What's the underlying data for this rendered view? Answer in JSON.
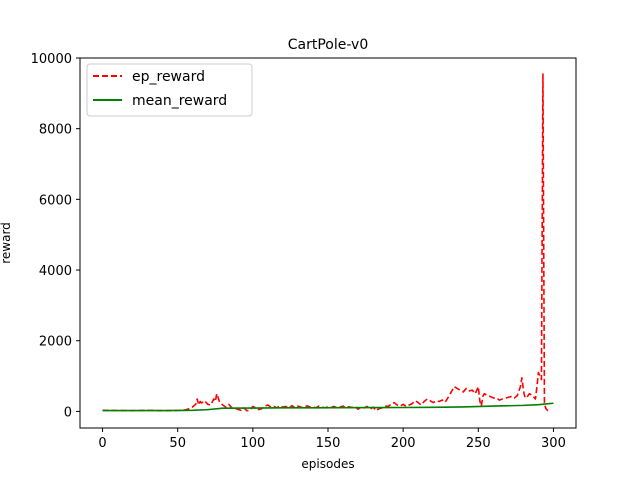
{
  "chart_data": {
    "type": "line",
    "title": "CartPole-v0",
    "xlabel": "episodes",
    "ylabel": "reward",
    "xlim": [
      -15,
      315
    ],
    "ylim": [
      -470,
      10000
    ],
    "xticks": [
      0,
      50,
      100,
      150,
      200,
      250,
      300
    ],
    "yticks": [
      0,
      2000,
      4000,
      6000,
      8000,
      10000
    ],
    "legend_position": "top-left",
    "series": [
      {
        "name": "ep_reward",
        "color": "#ff0000",
        "style": "dashed",
        "x": [
          0,
          10,
          20,
          30,
          40,
          50,
          55,
          58,
          60,
          62,
          63,
          64,
          65,
          66,
          68,
          70,
          72,
          74,
          75,
          76,
          78,
          80,
          82,
          84,
          86,
          88,
          90,
          92,
          94,
          96,
          98,
          100,
          102,
          104,
          106,
          108,
          110,
          112,
          114,
          116,
          118,
          120,
          122,
          124,
          126,
          128,
          130,
          132,
          134,
          136,
          138,
          140,
          142,
          144,
          146,
          148,
          150,
          152,
          154,
          156,
          158,
          160,
          162,
          164,
          166,
          168,
          170,
          172,
          174,
          176,
          178,
          180,
          182,
          184,
          186,
          188,
          190,
          192,
          194,
          196,
          198,
          200,
          202,
          204,
          206,
          208,
          210,
          212,
          214,
          216,
          218,
          220,
          222,
          224,
          226,
          228,
          230,
          232,
          234,
          236,
          238,
          240,
          242,
          244,
          246,
          248,
          250,
          251,
          252,
          253,
          254,
          256,
          258,
          260,
          262,
          264,
          266,
          268,
          270,
          272,
          274,
          276,
          278,
          279,
          280,
          281,
          282,
          284,
          286,
          288,
          289,
          290,
          291,
          292,
          293,
          294,
          295,
          296,
          297
        ],
        "values": [
          30,
          25,
          20,
          30,
          20,
          25,
          40,
          80,
          130,
          200,
          350,
          180,
          280,
          240,
          300,
          200,
          180,
          350,
          280,
          500,
          250,
          180,
          120,
          200,
          100,
          80,
          60,
          30,
          100,
          20,
          30,
          140,
          100,
          50,
          80,
          150,
          180,
          120,
          140,
          100,
          160,
          120,
          140,
          90,
          160,
          110,
          150,
          120,
          100,
          160,
          120,
          130,
          100,
          150,
          120,
          100,
          130,
          110,
          140,
          100,
          120,
          150,
          100,
          130,
          110,
          140,
          60,
          120,
          100,
          140,
          60,
          120,
          20,
          80,
          100,
          150,
          140,
          200,
          250,
          180,
          150,
          200,
          140,
          180,
          220,
          300,
          250,
          180,
          280,
          350,
          300,
          250,
          300,
          280,
          320,
          260,
          400,
          550,
          700,
          650,
          600,
          550,
          650,
          580,
          600,
          500,
          700,
          300,
          150,
          420,
          500,
          450,
          420,
          380,
          380,
          320,
          350,
          370,
          400,
          420,
          380,
          450,
          700,
          950,
          600,
          400,
          380,
          500,
          450,
          350,
          700,
          1100,
          1000,
          900,
          9550,
          200,
          80,
          30,
          10
        ]
      },
      {
        "name": "mean_reward",
        "color": "#008000",
        "style": "solid",
        "x": [
          0,
          20,
          40,
          60,
          70,
          80,
          100,
          120,
          140,
          160,
          180,
          200,
          220,
          240,
          260,
          280,
          290,
          295,
          300
        ],
        "values": [
          22,
          22,
          22,
          30,
          50,
          90,
          95,
          100,
          100,
          105,
          108,
          110,
          115,
          125,
          150,
          170,
          190,
          210,
          230
        ]
      }
    ]
  }
}
